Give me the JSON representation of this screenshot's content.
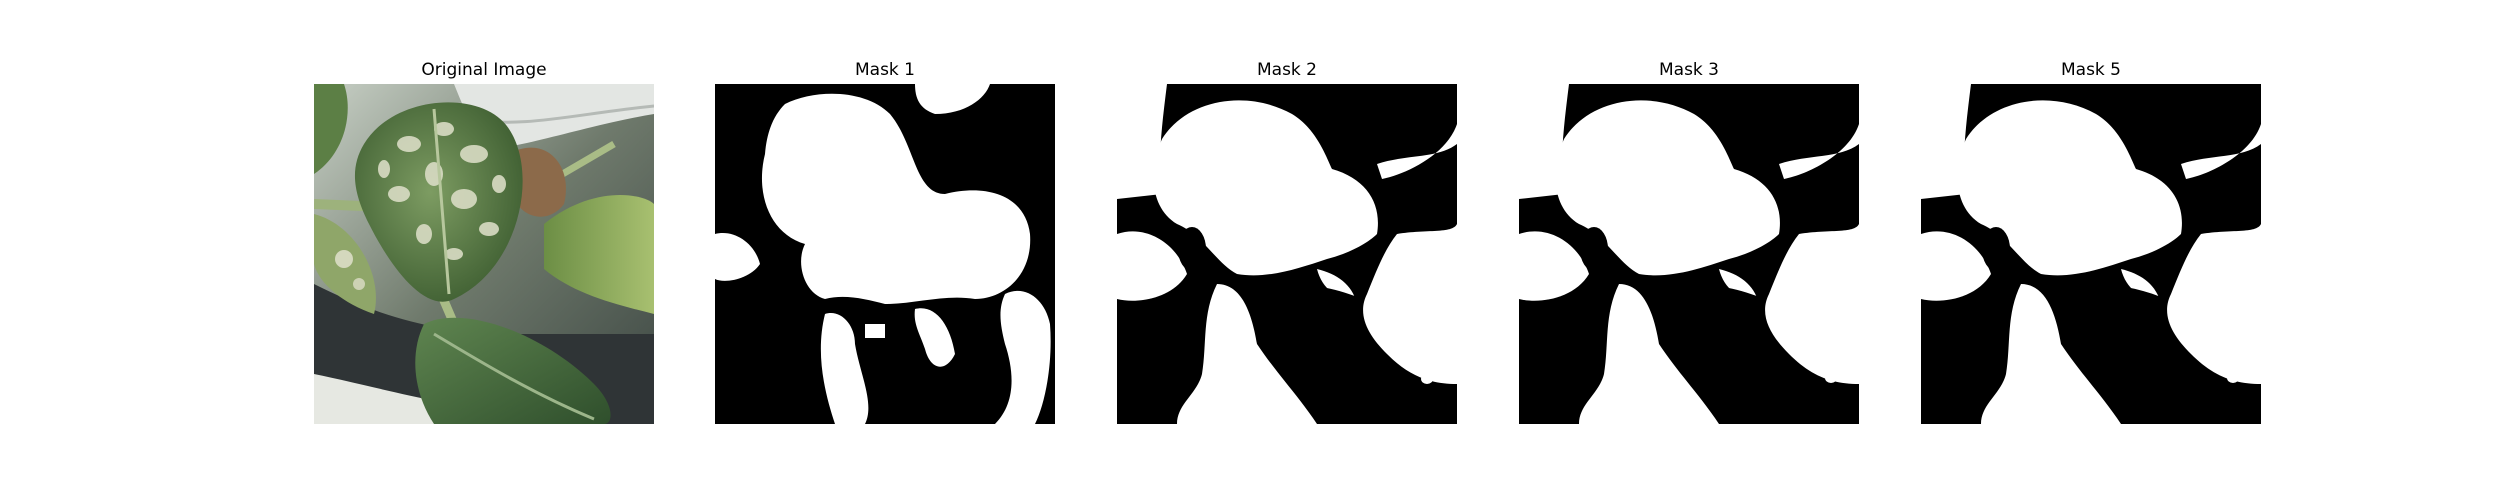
{
  "panels": [
    {
      "title": "Original Image",
      "kind": "photo",
      "subject": "leaf-photo"
    },
    {
      "title": "Mask 1",
      "kind": "mask",
      "subject": "segmentation-mask"
    },
    {
      "title": "Mask 2",
      "kind": "mask",
      "subject": "segmentation-mask"
    },
    {
      "title": "Mask 3",
      "kind": "mask",
      "subject": "segmentation-mask"
    },
    {
      "title": "Mask 5",
      "kind": "mask",
      "subject": "segmentation-mask"
    }
  ],
  "colors": {
    "background": "#ffffff",
    "mask_foreground": "#ffffff",
    "mask_background": "#000000",
    "leaf_dark": "#4a6b3a",
    "leaf_light": "#9fba7a",
    "leaf_spot": "#d9dcc4",
    "pot_dark": "#2f3436",
    "pot_light": "#d8dcda"
  }
}
